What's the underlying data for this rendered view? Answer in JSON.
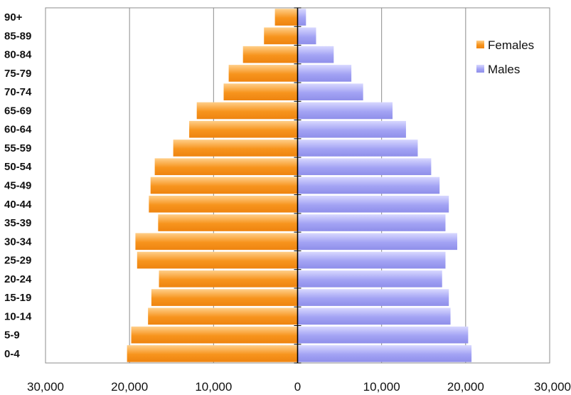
{
  "chart_data": {
    "type": "bar",
    "orientation": "horizontal",
    "layout": "population-pyramid",
    "categories": [
      "90+",
      "85-89",
      "80-84",
      "75-79",
      "70-74",
      "65-69",
      "60-64",
      "55-59",
      "50-54",
      "45-49",
      "40-44",
      "35-39",
      "30-34",
      "25-29",
      "20-24",
      "15-19",
      "10-14",
      "5-9",
      "0-4"
    ],
    "series": [
      {
        "name": "Females",
        "side": "left",
        "color": "#f7941d",
        "values": [
          2700,
          4000,
          6500,
          8200,
          8800,
          12000,
          12900,
          14800,
          17000,
          17500,
          17700,
          16600,
          19300,
          19100,
          16500,
          17400,
          17800,
          19800,
          20300
        ]
      },
      {
        "name": "Males",
        "side": "right",
        "color": "#9b9bf0",
        "values": [
          1000,
          2200,
          4300,
          6400,
          7800,
          11300,
          12900,
          14300,
          15900,
          16900,
          18000,
          17600,
          19000,
          17600,
          17200,
          18000,
          18200,
          20300,
          20700
        ]
      }
    ],
    "xlim": [
      -30000,
      30000
    ],
    "xticks": [
      "30,000",
      "20,000",
      "10,000",
      "0",
      "10,000",
      "20,000",
      "30,000"
    ],
    "xtick_values": [
      -30000,
      -20000,
      -10000,
      0,
      10000,
      20000,
      30000
    ],
    "grid": "vertical",
    "legend_position": "right",
    "title": "",
    "xlabel": "",
    "ylabel": ""
  }
}
